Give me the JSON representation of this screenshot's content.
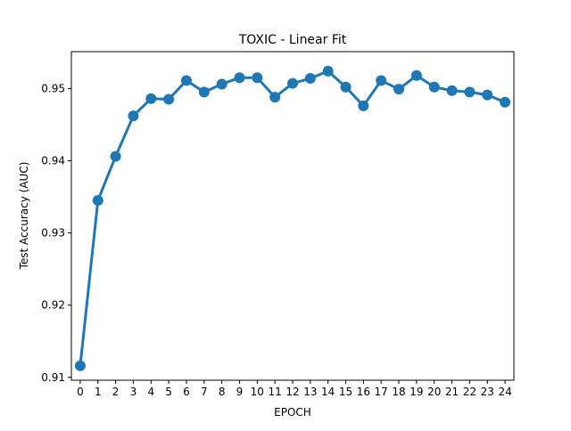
{
  "chart_data": {
    "type": "line",
    "title": "TOXIC - Linear Fit",
    "xlabel": "EPOCH",
    "ylabel": "Test Accuracy (AUC)",
    "x": [
      0,
      1,
      2,
      3,
      4,
      5,
      6,
      7,
      8,
      9,
      10,
      11,
      12,
      13,
      14,
      15,
      16,
      17,
      18,
      19,
      20,
      21,
      22,
      23,
      24
    ],
    "series": [
      {
        "values": [
          0.9116,
          0.9345,
          0.9406,
          0.9462,
          0.9486,
          0.9485,
          0.9511,
          0.9495,
          0.9506,
          0.9515,
          0.9515,
          0.9488,
          0.9507,
          0.9514,
          0.9524,
          0.9502,
          0.9476,
          0.9511,
          0.9499,
          0.9518,
          0.9502,
          0.9497,
          0.9495,
          0.9491,
          0.9481
        ],
        "color": "#1f77b4"
      }
    ],
    "xticks": [
      "0",
      "1",
      "2",
      "3",
      "4",
      "5",
      "6",
      "7",
      "8",
      "9",
      "10",
      "11",
      "12",
      "13",
      "14",
      "15",
      "16",
      "17",
      "18",
      "19",
      "20",
      "21",
      "22",
      "23",
      "24"
    ],
    "yticks": [
      0.91,
      0.92,
      0.93,
      0.94,
      0.95
    ],
    "ytick_labels": [
      "0.91",
      "0.92",
      "0.93",
      "0.94",
      "0.95"
    ],
    "xlim": [
      -0.5,
      24.5
    ],
    "ylim": [
      0.9096,
      0.9551
    ],
    "grid": false,
    "legend": "none"
  }
}
